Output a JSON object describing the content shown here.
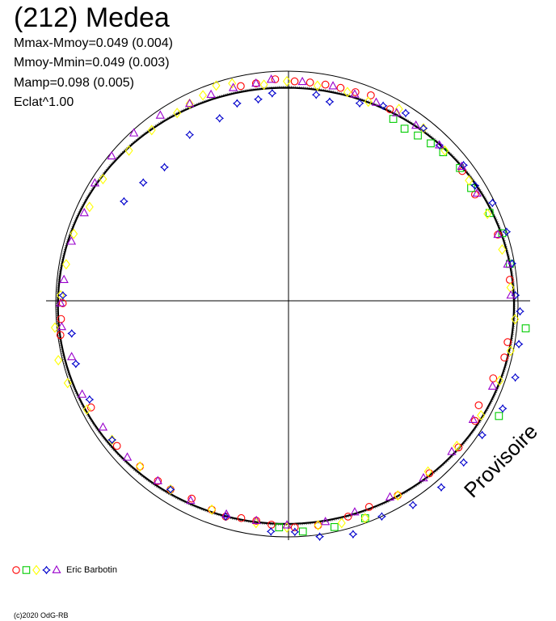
{
  "title": "(212) Medea",
  "stats": [
    "Mmax-Mmoy=0.049 (0.004)",
    "Mmoy-Mmin=0.049 (0.003)",
    "Mamp=0.098 (0.005)",
    "Eclat^1.00"
  ],
  "watermark": "Provisoire",
  "copyright": "(c)2020 OdG-RB",
  "legend": {
    "observer": "Eric Barbotin",
    "markers": [
      {
        "shape": "circle",
        "color": "#ff0000"
      },
      {
        "shape": "square",
        "color": "#00cc00"
      },
      {
        "shape": "diamond",
        "color": "#ffff00"
      },
      {
        "shape": "star",
        "color": "#0000cc"
      },
      {
        "shape": "triangle",
        "color": "#9900cc"
      }
    ]
  },
  "chart_data": {
    "type": "scatter",
    "coordinate_system": "polar",
    "axes": "crosshair",
    "reference_circle": true,
    "mean_curve": true,
    "series": [
      {
        "marker": "circle",
        "color": "#ff0000",
        "points": [
          [
            348,
            0.97
          ],
          [
            352,
            0.97
          ],
          [
            357,
            0.98
          ],
          [
            2,
            0.97
          ],
          [
            6,
            0.97
          ],
          [
            10,
            0.97
          ],
          [
            14,
            0.97
          ],
          [
            18,
            0.97
          ],
          [
            22,
            0.98
          ],
          [
            28,
            0.96
          ],
          [
            53,
            0.96
          ],
          [
            60,
            0.95
          ],
          [
            72,
            0.97
          ],
          [
            84,
            0.98
          ],
          [
            100,
            0.98
          ],
          [
            104,
            0.98
          ],
          [
            110,
            0.96
          ],
          [
            118,
            0.95
          ],
          [
            122,
            0.97
          ],
          [
            130,
            0.98
          ],
          [
            140,
            0.97
          ],
          [
            150,
            0.97
          ],
          [
            158,
            0.96
          ],
          [
            164,
            0.97
          ],
          [
            172,
            0.98
          ],
          [
            178,
            0.98
          ],
          [
            184,
            0.97
          ],
          [
            188,
            0.96
          ],
          [
            192,
            0.96
          ],
          [
            196,
            0.97
          ],
          [
            200,
            0.96
          ],
          [
            206,
            0.95
          ],
          [
            212,
            0.96
          ],
          [
            216,
            0.96
          ],
          [
            222,
            0.96
          ],
          [
            230,
            0.97
          ],
          [
            242,
            0.97
          ],
          [
            262,
            1.0
          ],
          [
            266,
            0.99
          ],
          [
            270,
            0.98
          ]
        ]
      },
      {
        "marker": "square",
        "color": "#00cc00",
        "points": [
          [
            30,
            0.93
          ],
          [
            34,
            0.92
          ],
          [
            38,
            0.93
          ],
          [
            42,
            0.94
          ],
          [
            46,
            0.95
          ],
          [
            52,
            0.96
          ],
          [
            58,
            0.95
          ],
          [
            66,
            0.97
          ],
          [
            72,
            0.99
          ],
          [
            80,
            0.99
          ],
          [
            96,
            1.05
          ],
          [
            118,
            1.05
          ],
          [
            160,
            1.0
          ],
          [
            168,
            1.0
          ],
          [
            176,
            1.0
          ],
          [
            182,
            0.98
          ]
        ]
      },
      {
        "marker": "diamond",
        "color": "#ffff00",
        "points": [
          [
            334,
            0.97
          ],
          [
            338,
            0.98
          ],
          [
            342,
            1.0
          ],
          [
            346,
            0.99
          ],
          [
            354,
            0.96
          ],
          [
            0,
            0.97
          ],
          [
            8,
            0.96
          ],
          [
            16,
            0.96
          ],
          [
            22,
            0.95
          ],
          [
            30,
            0.98
          ],
          [
            38,
            0.97
          ],
          [
            46,
            0.96
          ],
          [
            56,
            0.96
          ],
          [
            66,
            0.96
          ],
          [
            76,
            0.97
          ],
          [
            86,
            0.98
          ],
          [
            94,
            1.0
          ],
          [
            102,
            1.0
          ],
          [
            110,
            0.99
          ],
          [
            120,
            0.98
          ],
          [
            130,
            0.97
          ],
          [
            140,
            0.96
          ],
          [
            150,
            0.97
          ],
          [
            160,
            1.0
          ],
          [
            166,
            0.99
          ],
          [
            172,
            0.98
          ],
          [
            180,
            0.98
          ],
          [
            188,
            0.97
          ],
          [
            200,
            0.96
          ],
          [
            212,
            0.96
          ],
          [
            222,
            0.96
          ],
          [
            232,
            0.97
          ],
          [
            242,
            0.99
          ],
          [
            250,
            1.02
          ],
          [
            256,
            1.03
          ],
          [
            264,
            1.02
          ],
          [
            272,
            0.99
          ],
          [
            280,
            0.98
          ],
          [
            288,
            0.98
          ],
          [
            296,
            0.96
          ],
          [
            304,
            0.97
          ],
          [
            314,
            0.96
          ],
          [
            322,
            0.96
          ],
          [
            330,
            0.96
          ]
        ]
      },
      {
        "marker": "star",
        "color": "#0000cc",
        "points": [
          [
            8,
            0.92
          ],
          [
            12,
            0.9
          ],
          [
            20,
            0.93
          ],
          [
            26,
            0.96
          ],
          [
            32,
            0.98
          ],
          [
            38,
            0.97
          ],
          [
            44,
            0.96
          ],
          [
            52,
            0.98
          ],
          [
            58,
            0.97
          ],
          [
            64,
            1.0
          ],
          [
            72,
            1.01
          ],
          [
            80,
            1.0
          ],
          [
            88,
            1.0
          ],
          [
            92,
            1.02
          ],
          [
            100,
            1.03
          ],
          [
            108,
            1.05
          ],
          [
            116,
            1.05
          ],
          [
            124,
            1.03
          ],
          [
            132,
            1.04
          ],
          [
            140,
            1.05
          ],
          [
            148,
            1.04
          ],
          [
            156,
            1.02
          ],
          [
            164,
            1.05
          ],
          [
            172,
            1.03
          ],
          [
            178,
            1.0
          ],
          [
            184,
            1.0
          ],
          [
            196,
            0.97
          ],
          [
            212,
            0.96
          ],
          [
            232,
            0.97
          ],
          [
            244,
            0.96
          ],
          [
            254,
            0.96
          ],
          [
            262,
            0.95
          ],
          [
            272,
            0.98
          ],
          [
            302,
            0.84
          ],
          [
            310,
            0.82
          ],
          [
            318,
            0.8
          ],
          [
            330,
            0.85
          ],
          [
            340,
            0.86
          ],
          [
            346,
            0.9
          ],
          [
            352,
            0.9
          ],
          [
            356,
            0.92
          ]
        ]
      },
      {
        "marker": "triangle",
        "color": "#9900cc",
        "points": [
          [
            340,
            0.97
          ],
          [
            346,
            0.97
          ],
          [
            352,
            0.97
          ],
          [
            356,
            0.98
          ],
          [
            4,
            0.97
          ],
          [
            12,
            0.97
          ],
          [
            18,
            0.96
          ],
          [
            24,
            0.96
          ],
          [
            30,
            0.96
          ],
          [
            36,
            0.96
          ],
          [
            44,
            0.96
          ],
          [
            52,
            0.97
          ],
          [
            60,
            0.96
          ],
          [
            72,
            0.97
          ],
          [
            80,
            0.98
          ],
          [
            88,
            0.98
          ],
          [
            112,
            0.97
          ],
          [
            122,
            0.96
          ],
          [
            132,
            0.97
          ],
          [
            142,
            0.97
          ],
          [
            152,
            0.96
          ],
          [
            162,
            0.96
          ],
          [
            170,
            0.97
          ],
          [
            180,
            0.97
          ],
          [
            188,
            0.96
          ],
          [
            196,
            0.96
          ],
          [
            206,
            0.96
          ],
          [
            216,
            0.96
          ],
          [
            226,
            0.97
          ],
          [
            236,
            0.97
          ],
          [
            246,
            0.98
          ],
          [
            256,
            0.97
          ],
          [
            264,
            0.99
          ],
          [
            270,
            0.99
          ],
          [
            276,
            0.98
          ],
          [
            286,
            0.98
          ],
          [
            294,
            0.97
          ],
          [
            302,
            0.99
          ],
          [
            310,
            1.0
          ],
          [
            318,
            1.0
          ],
          [
            326,
            0.99
          ],
          [
            334,
            0.97
          ]
        ]
      }
    ]
  }
}
